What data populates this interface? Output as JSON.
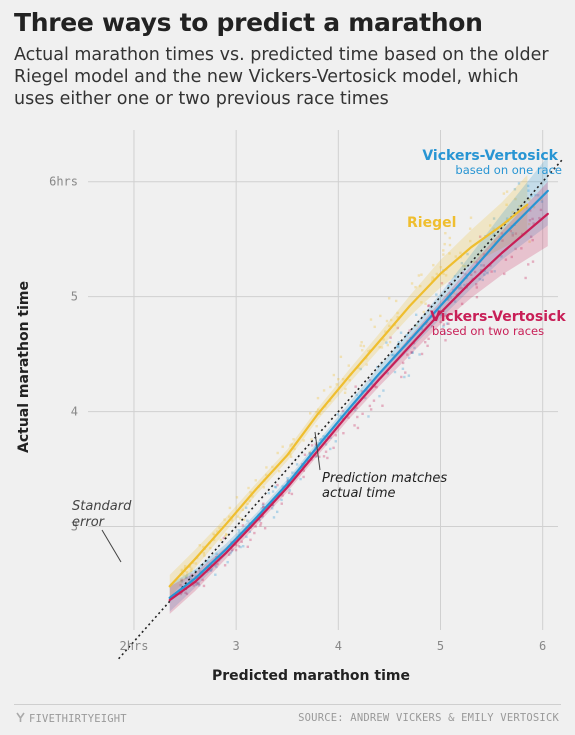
{
  "header": {
    "title": "Three ways to predict a marathon",
    "subtitle": "Actual marathon times vs. predicted time based on the older Riegel model and the new Vickers-Vertosick model, which uses either one or two previous race times"
  },
  "footer": {
    "brand": "FIVETHIRTYEIGHT",
    "source": "SOURCE: ANDREW VICKERS & EMILY VERTOSICK"
  },
  "chart_data": {
    "type": "scatter",
    "xlabel": "Predicted marathon time",
    "ylabel": "Actual marathon time",
    "xlim": [
      1.55,
      6.15
    ],
    "ylim": [
      2.1,
      6.45
    ],
    "grid": true,
    "x_ticks": [
      {
        "value": 2,
        "label": "2hrs"
      },
      {
        "value": 3,
        "label": "3"
      },
      {
        "value": 4,
        "label": "4"
      },
      {
        "value": 5,
        "label": "5"
      },
      {
        "value": 6,
        "label": "6"
      }
    ],
    "y_ticks": [
      {
        "value": 3,
        "label": "3"
      },
      {
        "value": 4,
        "label": "4"
      },
      {
        "value": 5,
        "label": "5"
      },
      {
        "value": 6,
        "label": "6hrs"
      }
    ],
    "reference_line": {
      "x": [
        1.85,
        6.2
      ],
      "y": [
        1.85,
        6.2
      ],
      "label": "Prediction matches actual time"
    },
    "series": [
      {
        "name": "Riegel",
        "color": "#efbe2f",
        "x": [
          2.35,
          2.6,
          2.9,
          3.2,
          3.5,
          3.8,
          4.1,
          4.4,
          4.7,
          5.0,
          5.3,
          5.6,
          5.85
        ],
        "y": [
          2.48,
          2.72,
          3.02,
          3.33,
          3.62,
          3.98,
          4.3,
          4.61,
          4.92,
          5.2,
          5.43,
          5.62,
          5.8
        ],
        "band": [
          0.1,
          0.08,
          0.06,
          0.05,
          0.05,
          0.05,
          0.06,
          0.07,
          0.09,
          0.12,
          0.15,
          0.2,
          0.26
        ]
      },
      {
        "name": "Vickers-Vertosick based on one race",
        "color": "#2895d3",
        "x": [
          2.35,
          2.6,
          2.9,
          3.2,
          3.5,
          3.8,
          4.1,
          4.4,
          4.7,
          5.0,
          5.3,
          5.6,
          6.05
        ],
        "y": [
          2.38,
          2.55,
          2.8,
          3.08,
          3.37,
          3.7,
          4.02,
          4.33,
          4.62,
          4.92,
          5.22,
          5.52,
          5.92
        ],
        "band": [
          0.12,
          0.08,
          0.05,
          0.04,
          0.04,
          0.04,
          0.05,
          0.06,
          0.08,
          0.11,
          0.15,
          0.2,
          0.3
        ]
      },
      {
        "name": "Vickers-Vertosick based on two races",
        "color": "#c81f57",
        "x": [
          2.35,
          2.6,
          2.9,
          3.2,
          3.5,
          3.8,
          4.1,
          4.4,
          4.7,
          5.0,
          5.3,
          5.6,
          6.05
        ],
        "y": [
          2.36,
          2.52,
          2.77,
          3.05,
          3.34,
          3.66,
          3.98,
          4.28,
          4.57,
          4.86,
          5.13,
          5.38,
          5.72
        ],
        "band": [
          0.12,
          0.08,
          0.05,
          0.04,
          0.04,
          0.04,
          0.05,
          0.06,
          0.08,
          0.1,
          0.14,
          0.19,
          0.28
        ]
      }
    ],
    "annotations": {
      "vv_one": {
        "title": "Vickers-Vertosick",
        "sub": "based on one race",
        "color": "#2895d3"
      },
      "riegel": {
        "title": "Riegel",
        "color": "#efbe2f"
      },
      "vv_two": {
        "title": "Vickers-Vertosick",
        "sub": "based on two races",
        "color": "#c81f57"
      },
      "prediction": {
        "line1": "Prediction matches",
        "line2": "actual time"
      },
      "stderr": {
        "line1": "Standard",
        "line2": "error"
      }
    }
  }
}
